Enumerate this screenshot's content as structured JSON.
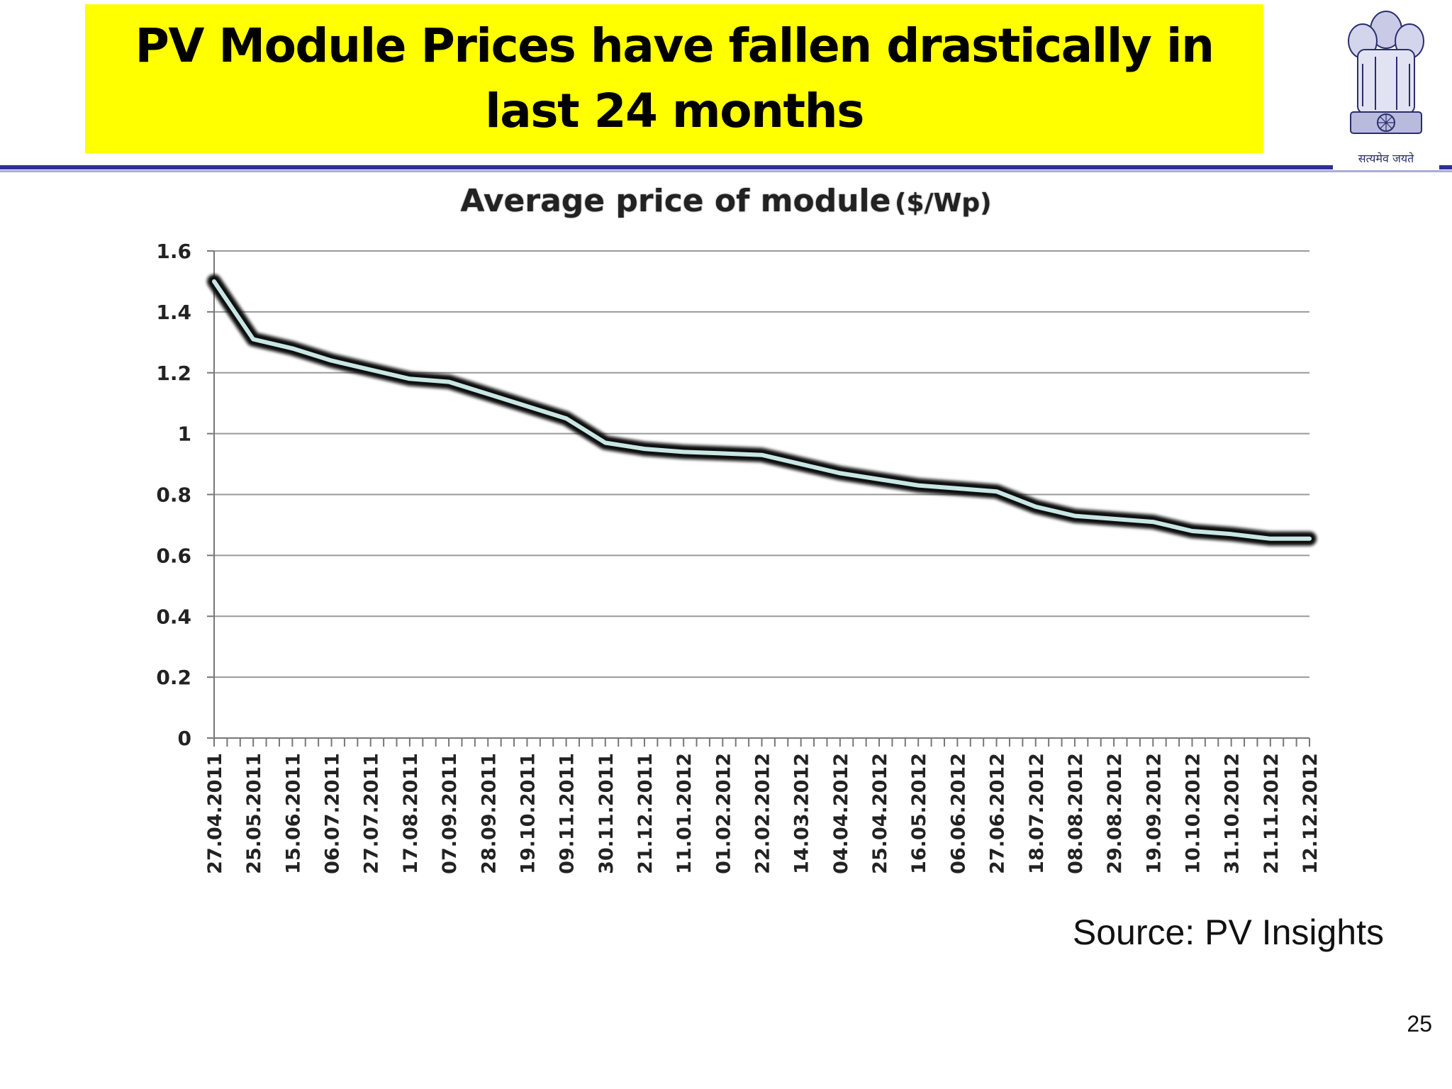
{
  "slide": {
    "title": "PV Module Prices have fallen drastically in last 24 months",
    "source": "Source: PV Insights",
    "page_number": "25",
    "emblem_caption": "सत्यमेव जयते",
    "colors": {
      "title_bg": "#ffff00",
      "rule": "#2e3192",
      "line": "#c8e6e4",
      "line_glow": "#111111"
    }
  },
  "chart_data": {
    "type": "line",
    "title": "Average price of module",
    "unit": "($/Wp)",
    "ylim": [
      0,
      1.6
    ],
    "yticks": [
      "1.6",
      "1.4",
      "1.2",
      "1",
      "0.8",
      "0.6",
      "0.4",
      "0.2",
      "0"
    ],
    "grid": true,
    "legend": "none",
    "categories": [
      "27.04.2011",
      "25.05.2011",
      "15.06.2011",
      "06.07.2011",
      "27.07.2011",
      "17.08.2011",
      "07.09.2011",
      "28.09.2011",
      "19.10.2011",
      "09.11.2011",
      "30.11.2011",
      "21.12.2011",
      "11.01.2012",
      "01.02.2012",
      "22.02.2012",
      "14.03.2012",
      "04.04.2012",
      "25.04.2012",
      "16.05.2012",
      "06.06.2012",
      "27.06.2012",
      "18.07.2012",
      "08.08.2012",
      "29.08.2012",
      "19.09.2012",
      "10.10.2012",
      "31.10.2012",
      "21.11.2012",
      "12.12.2012"
    ],
    "series": [
      {
        "values": [
          1.5,
          1.31,
          1.28,
          1.24,
          1.21,
          1.18,
          1.17,
          1.13,
          1.09,
          1.05,
          0.97,
          0.95,
          0.94,
          0.935,
          0.93,
          0.9,
          0.87,
          0.85,
          0.83,
          0.82,
          0.81,
          0.76,
          0.73,
          0.72,
          0.71,
          0.68,
          0.67,
          0.655,
          0.655
        ]
      }
    ]
  }
}
